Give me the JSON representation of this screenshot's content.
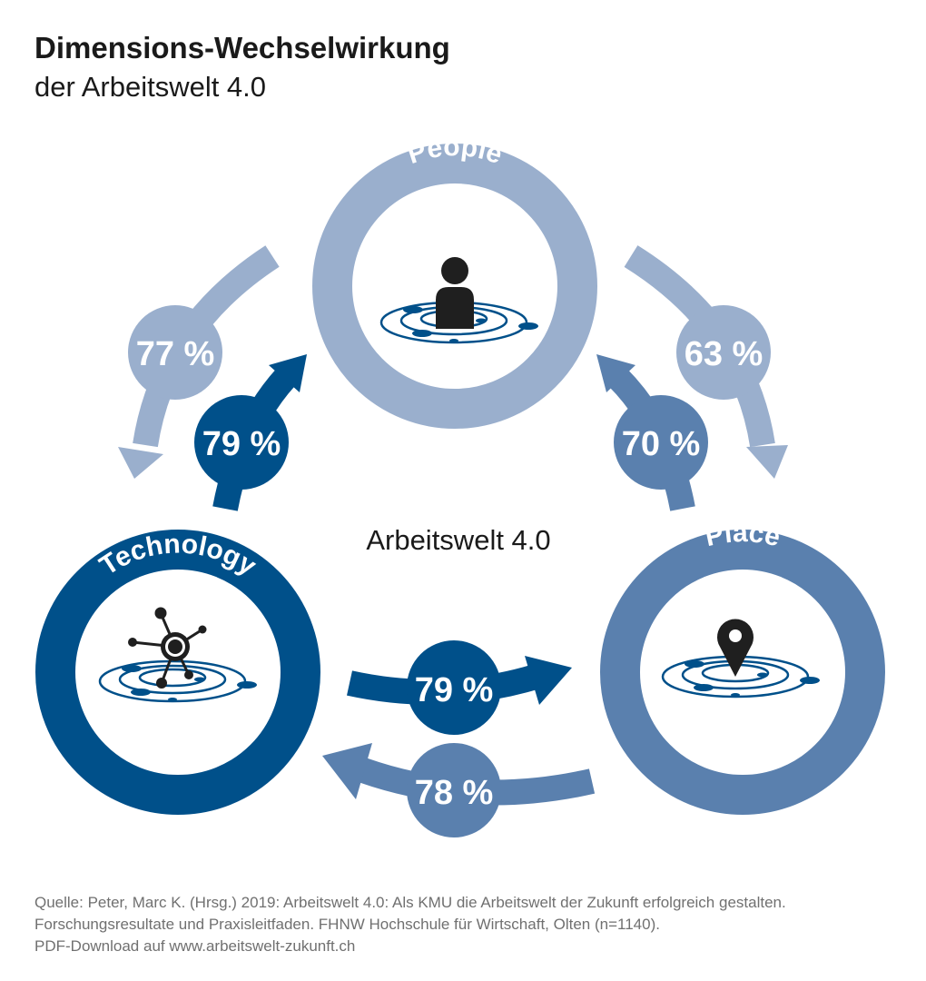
{
  "title": "Dimensions-Wechselwirkung",
  "subtitle": "der Arbeitswelt 4.0",
  "center_label": "Arbeitswelt 4.0",
  "colors": {
    "people": "#9aafcd",
    "technology": "#00508a",
    "place": "#5a80ae",
    "icon": "#1f1f1f"
  },
  "dimensions": {
    "people": {
      "label": "People",
      "icon": "person-icon"
    },
    "technology": {
      "label": "Technology",
      "icon": "network-hub-icon"
    },
    "place": {
      "label": "Place",
      "icon": "location-pin-icon"
    }
  },
  "relations": {
    "people_to_technology": "77 %",
    "technology_to_people": "79 %",
    "people_to_place": "63 %",
    "place_to_people": "70 %",
    "technology_to_place": "79 %",
    "place_to_technology": "78 %"
  },
  "source": [
    "Quelle: Peter, Marc K. (Hrsg.) 2019: Arbeitswelt 4.0: Als KMU die Arbeitswelt der Zukunft erfolgreich gestalten.",
    "Forschungsresultate und Praxisleitfaden. FHNW Hochschule für Wirtschaft, Olten (n=1140).",
    "PDF-Download auf www.arbeitswelt-zukunft.ch"
  ]
}
